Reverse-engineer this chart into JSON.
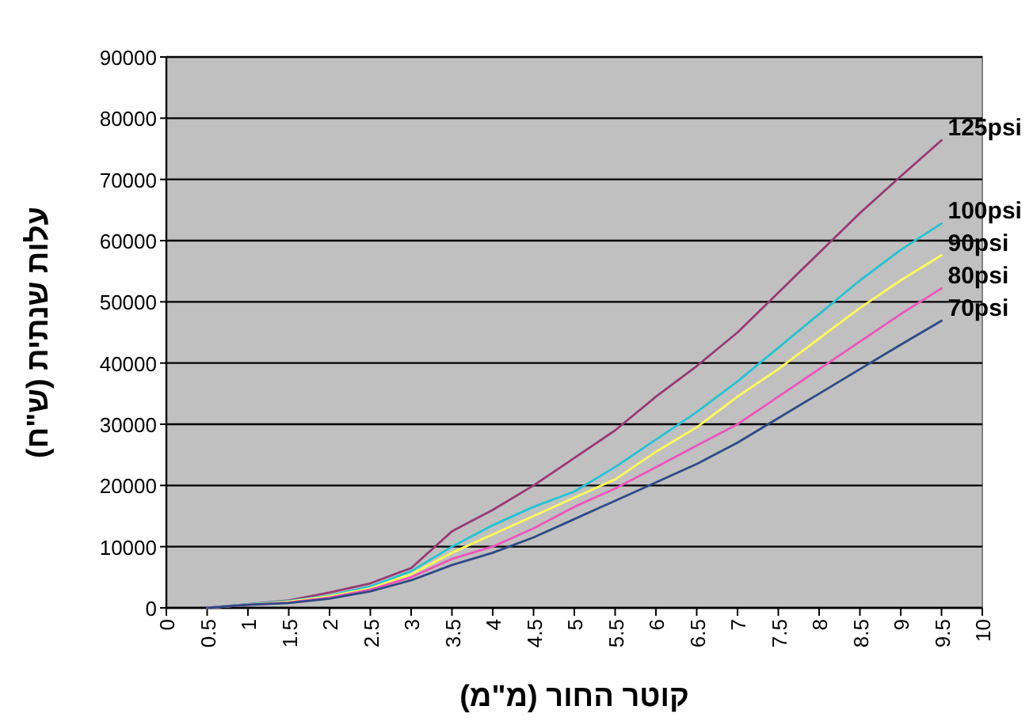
{
  "chart_data": {
    "type": "line",
    "xlabel": "קוטר החור (מ\"מ)",
    "ylabel": "עלות שנתית (ש\"ח)",
    "x": [
      0.5,
      1,
      1.5,
      2,
      2.5,
      3,
      3.5,
      4,
      4.5,
      5,
      5.5,
      6,
      6.5,
      7,
      7.5,
      8,
      8.5,
      9,
      9.5
    ],
    "series": [
      {
        "name": "125psi",
        "color": "#993a73",
        "values": [
          0,
          600,
          1200,
          2500,
          4000,
          6500,
          12500,
          16000,
          20000,
          24500,
          29000,
          34500,
          39500,
          45000,
          51500,
          58000,
          64500,
          70500,
          76400
        ]
      },
      {
        "name": "100psi",
        "color": "#22c4d4",
        "values": [
          0,
          600,
          1100,
          2000,
          3500,
          6000,
          10000,
          13500,
          16500,
          19000,
          23000,
          27500,
          32000,
          37000,
          42500,
          48000,
          53500,
          58500,
          62800
        ]
      },
      {
        "name": "90psi",
        "color": "#ffff55",
        "values": [
          0,
          500,
          1000,
          1900,
          3200,
          5500,
          9000,
          12000,
          15000,
          18000,
          21000,
          25500,
          29500,
          34500,
          39000,
          44000,
          49000,
          53500,
          57600
        ]
      },
      {
        "name": "80psi",
        "color": "#ee55bb",
        "values": [
          0,
          500,
          900,
          1700,
          3000,
          5000,
          8000,
          10000,
          13000,
          16500,
          19500,
          23000,
          26500,
          30000,
          34500,
          39000,
          43500,
          48000,
          52200
        ]
      },
      {
        "name": "70psi",
        "color": "#2e4a86",
        "values": [
          0,
          500,
          800,
          1500,
          2700,
          4500,
          7000,
          9000,
          11500,
          14500,
          17500,
          20500,
          23500,
          27000,
          31000,
          35000,
          39000,
          43000,
          46900
        ]
      }
    ],
    "xlim": [
      0,
      10
    ],
    "xticks": [
      0,
      0.5,
      1,
      1.5,
      2,
      2.5,
      3,
      3.5,
      4,
      4.5,
      5,
      5.5,
      6,
      6.5,
      7,
      7.5,
      8,
      8.5,
      9,
      9.5,
      10
    ],
    "ylim": [
      0,
      90000
    ],
    "yticks": [
      0,
      10000,
      20000,
      30000,
      40000,
      50000,
      60000,
      70000,
      80000,
      90000
    ],
    "grid": "y",
    "marker": "none",
    "line_style": "solid"
  }
}
